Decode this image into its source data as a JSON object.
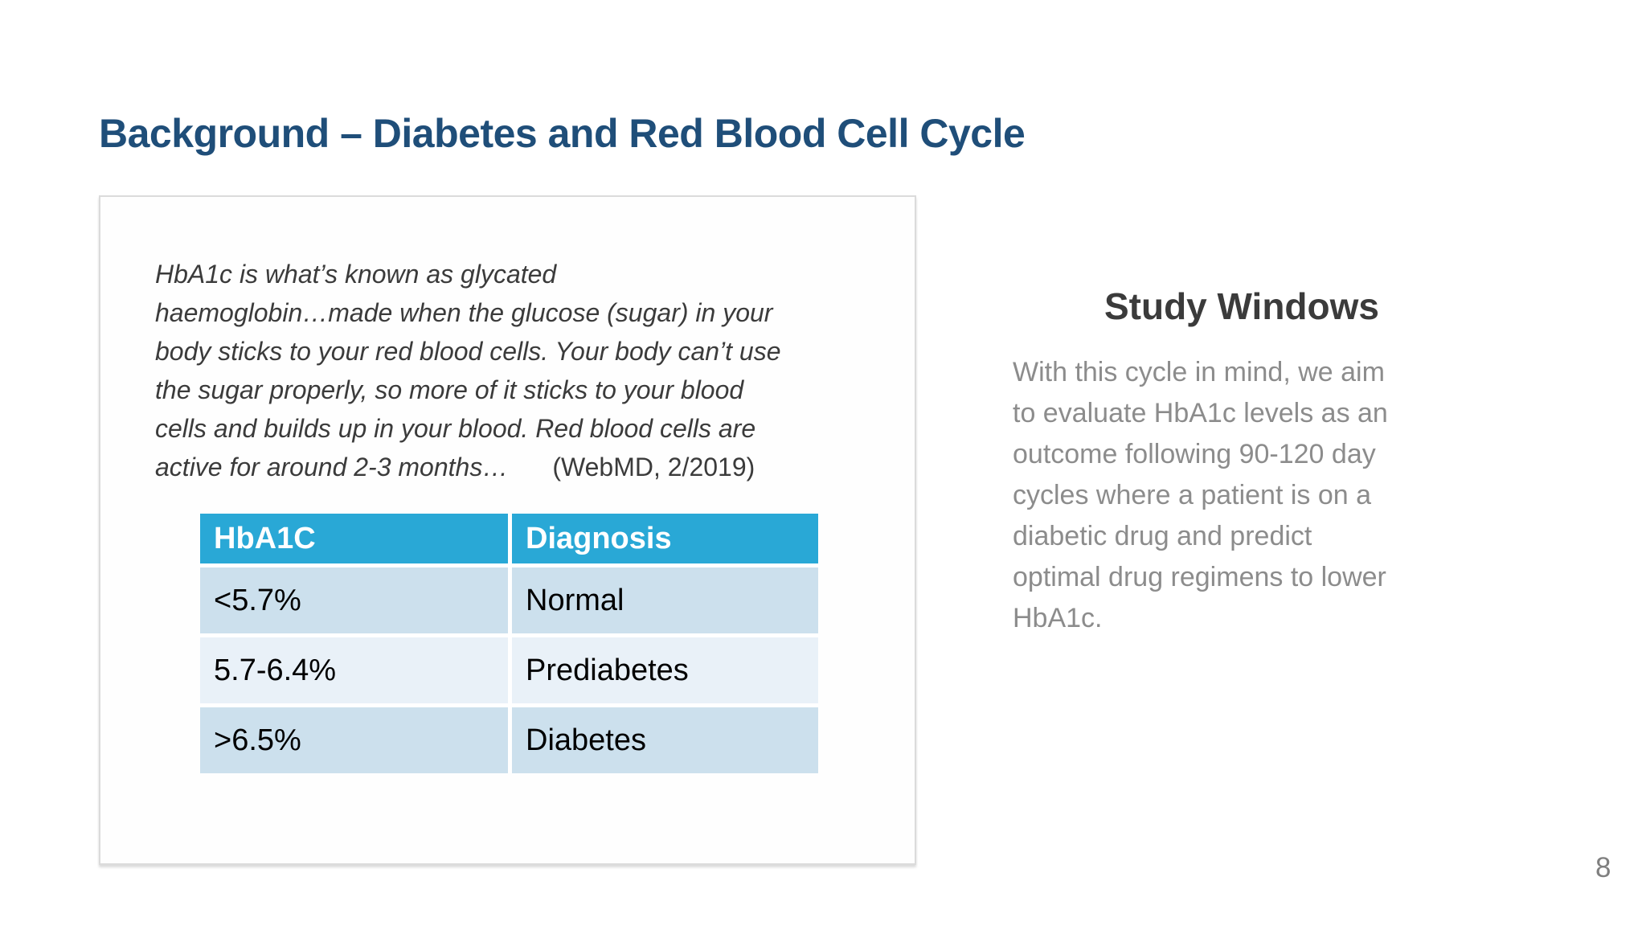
{
  "slide": {
    "title": "Background – Diabetes and Red Blood Cell Cycle",
    "page_number": "8"
  },
  "quote_card": {
    "body": "HbA1c is what’s known as glycated\nhaemoglobin…made when the glucose (sugar) in your\nbody sticks to your red blood cells. Your body can’t use\nthe sugar properly, so more of it sticks to your blood\ncells and builds up in your blood. Red blood cells are\nactive for around 2-3 months…",
    "citation": "(WebMD, 2/2019)"
  },
  "hba1c_table": {
    "headers": [
      "HbA1C",
      "Diagnosis"
    ],
    "rows": [
      [
        "<5.7%",
        "Normal"
      ],
      [
        "5.7-6.4%",
        "Prediabetes"
      ],
      [
        ">6.5%",
        "Diabetes"
      ]
    ]
  },
  "study_windows": {
    "heading": "Study Windows",
    "body": "With this cycle in mind, we aim\nto evaluate HbA1c levels as an\noutcome following 90-120 day\ncycles where a patient is on a\ndiabetic drug and predict\noptimal drug regimens to lower\nHbA1c."
  },
  "colors": {
    "title_blue": "#1F4E79",
    "table_header_bg": "#29A8D6",
    "table_row_odd_bg": "#CCE0ED",
    "table_row_even_bg": "#E9F1F8",
    "quote_text": "#3B3B3B",
    "heading_text": "#3B3B3B",
    "paragraph_gray": "#8C8C8C",
    "page_number_gray": "#7F7F7F",
    "card_border": "#DBDBDB"
  }
}
